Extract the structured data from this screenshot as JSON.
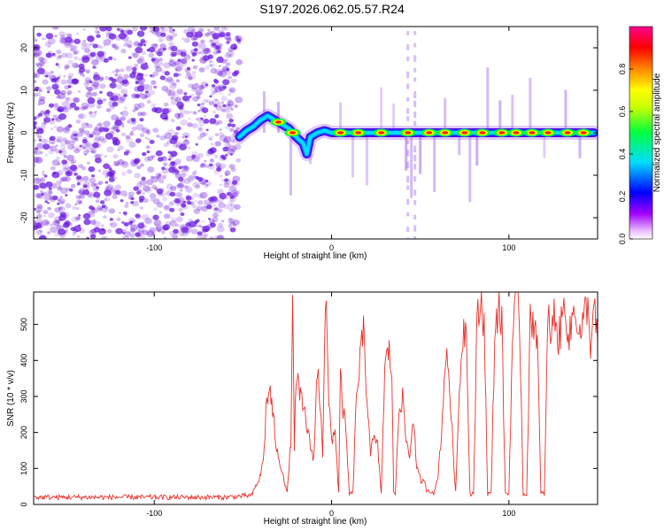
{
  "title": "S197.2026.062.05.57.R24",
  "colors": {
    "snr_line": "#e8312b",
    "spectrogram_speckle": "#7b2be0",
    "colorbar_stops": [
      "#d070f0",
      "#a000ff",
      "#0000ff",
      "#00ddff",
      "#00ff30",
      "#c8ff00",
      "#ffff00",
      "#ff8800",
      "#ff0000",
      "#ff0090"
    ]
  },
  "chart_data": [
    {
      "type": "heatmap",
      "title": "",
      "xlabel": "Height of straight line (km)",
      "ylabel": "Frequency (Hz)",
      "xlim": [
        -168,
        150
      ],
      "ylim": [
        -25,
        25
      ],
      "xticks": [
        -100,
        0,
        100
      ],
      "xtick_labels": [
        "-100",
        "0",
        "100"
      ],
      "yticks": [
        -20,
        -10,
        0,
        10,
        20
      ],
      "ytick_labels": [
        "-20",
        "-10",
        "0",
        "10",
        "20"
      ],
      "colorbar": {
        "label": "Normalized spectral amplitude",
        "range": [
          0,
          1
        ],
        "ticks": [
          0.0,
          0.2,
          0.4,
          0.6,
          0.8
        ],
        "tick_labels": [
          "0.0",
          "0.2",
          "0.4",
          "0.6",
          "0.8"
        ]
      },
      "noise_region_x": [
        -168,
        -52
      ],
      "trace": {
        "x": [
          -52,
          -48,
          -44,
          -40,
          -36,
          -32,
          -28,
          -24,
          -20,
          -16,
          -14,
          -12,
          -8,
          -4,
          0,
          10,
          20,
          40,
          60,
          80,
          100,
          120,
          148
        ],
        "y": [
          -1,
          0.5,
          1.5,
          3,
          4,
          3,
          2,
          1,
          -1,
          -2.5,
          -5,
          -1,
          0,
          0.5,
          0,
          0,
          0,
          0,
          0,
          0,
          0,
          0,
          0
        ]
      },
      "hot_spots_x": [
        -30,
        -22,
        5,
        15,
        28,
        43,
        55,
        64,
        75,
        85,
        96,
        104,
        113,
        122,
        133,
        142
      ],
      "vertical_streaks_x": [
        -38,
        -30,
        -23,
        -12,
        5,
        12,
        20,
        28,
        35,
        42,
        45,
        50,
        58,
        64,
        72,
        78,
        82,
        88,
        95,
        102,
        112,
        120,
        132,
        140
      ]
    },
    {
      "type": "line",
      "title": "",
      "xlabel": "Height of straight line (km)",
      "ylabel": "SNR (10 * v/v)",
      "xlim": [
        -168,
        150
      ],
      "ylim": [
        0,
        590
      ],
      "xticks": [
        -100,
        0,
        100
      ],
      "xtick_labels": [
        "-100",
        "0",
        "100"
      ],
      "yticks": [
        0,
        100,
        200,
        300,
        400,
        500
      ],
      "ytick_labels": [
        "0",
        "100",
        "200",
        "300",
        "400",
        "500"
      ],
      "series": [
        {
          "name": "SNR",
          "x": [
            -168,
            -60,
            -45,
            -40,
            -38,
            -37,
            -35,
            -32,
            -30,
            -28,
            -25,
            -23,
            -22,
            -21,
            -20,
            -18,
            -15,
            -12,
            -10,
            -8,
            -6,
            -5,
            -4,
            -3,
            -2,
            -1,
            0,
            2,
            4,
            5,
            6,
            8,
            10,
            12,
            14,
            16,
            18,
            20,
            22,
            24,
            26,
            28,
            30,
            32,
            34,
            35,
            36,
            38,
            40,
            42,
            44,
            46,
            48,
            50,
            52,
            54,
            56,
            58,
            60,
            62,
            64,
            66,
            68,
            70,
            72,
            74,
            76,
            78,
            80,
            82,
            84,
            86,
            88,
            90,
            92,
            94,
            96,
            98,
            100,
            102,
            104,
            106,
            108,
            110,
            112,
            114,
            116,
            118,
            120,
            122,
            124,
            126,
            128,
            130,
            132,
            134,
            136,
            138,
            140,
            142,
            144,
            146,
            148,
            150
          ],
          "y": [
            20,
            20,
            25,
            80,
            150,
            260,
            330,
            200,
            120,
            100,
            30,
            180,
            560,
            150,
            370,
            300,
            250,
            160,
            130,
            380,
            260,
            140,
            450,
            560,
            330,
            250,
            180,
            210,
            30,
            350,
            290,
            200,
            30,
            30,
            300,
            400,
            470,
            300,
            150,
            180,
            160,
            30,
            370,
            430,
            380,
            30,
            30,
            280,
            290,
            180,
            130,
            250,
            100,
            70,
            60,
            40,
            40,
            30,
            80,
            200,
            400,
            380,
            200,
            30,
            320,
            480,
            500,
            30,
            30,
            500,
            560,
            520,
            30,
            30,
            470,
            560,
            500,
            30,
            30,
            460,
            560,
            520,
            30,
            30,
            500,
            520,
            470,
            30,
            30,
            520,
            470,
            540,
            450,
            520,
            560,
            450,
            530,
            540,
            470,
            500,
            560,
            450,
            540,
            450
          ]
        }
      ]
    }
  ]
}
